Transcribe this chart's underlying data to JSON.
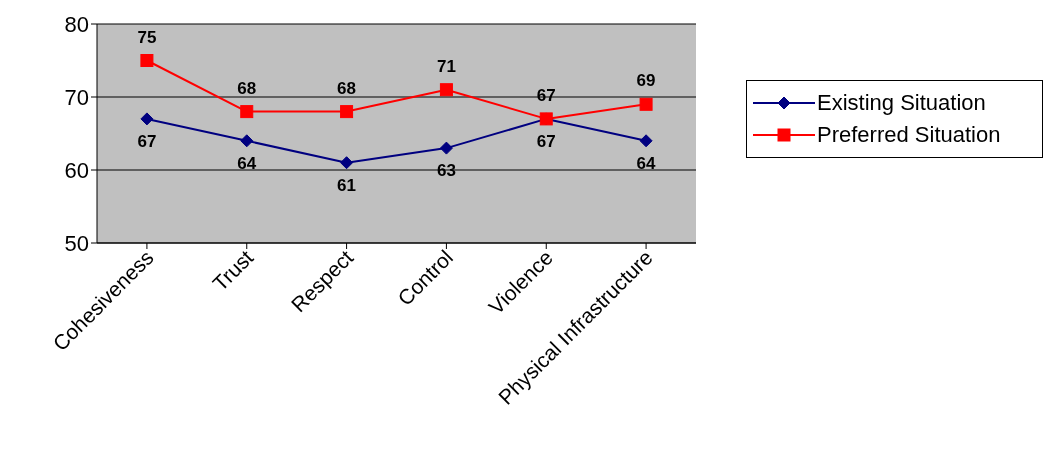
{
  "chart_data": {
    "type": "line",
    "categories": [
      "Cohesiveness",
      "Trust",
      "Respect",
      "Control",
      "Violence",
      "Physical Infrastructure"
    ],
    "series": [
      {
        "name": "Existing Situation",
        "color": "#000080",
        "marker": "diamond",
        "values": [
          67,
          64,
          61,
          63,
          67,
          64
        ]
      },
      {
        "name": "Preferred Situation",
        "color": "#ff0000",
        "marker": "square",
        "values": [
          75,
          68,
          68,
          71,
          67,
          69
        ]
      }
    ],
    "ylim": [
      50,
      80
    ],
    "yticks": [
      50,
      60,
      70,
      80
    ],
    "grid": "y",
    "legend": "right",
    "data_labels": true
  }
}
